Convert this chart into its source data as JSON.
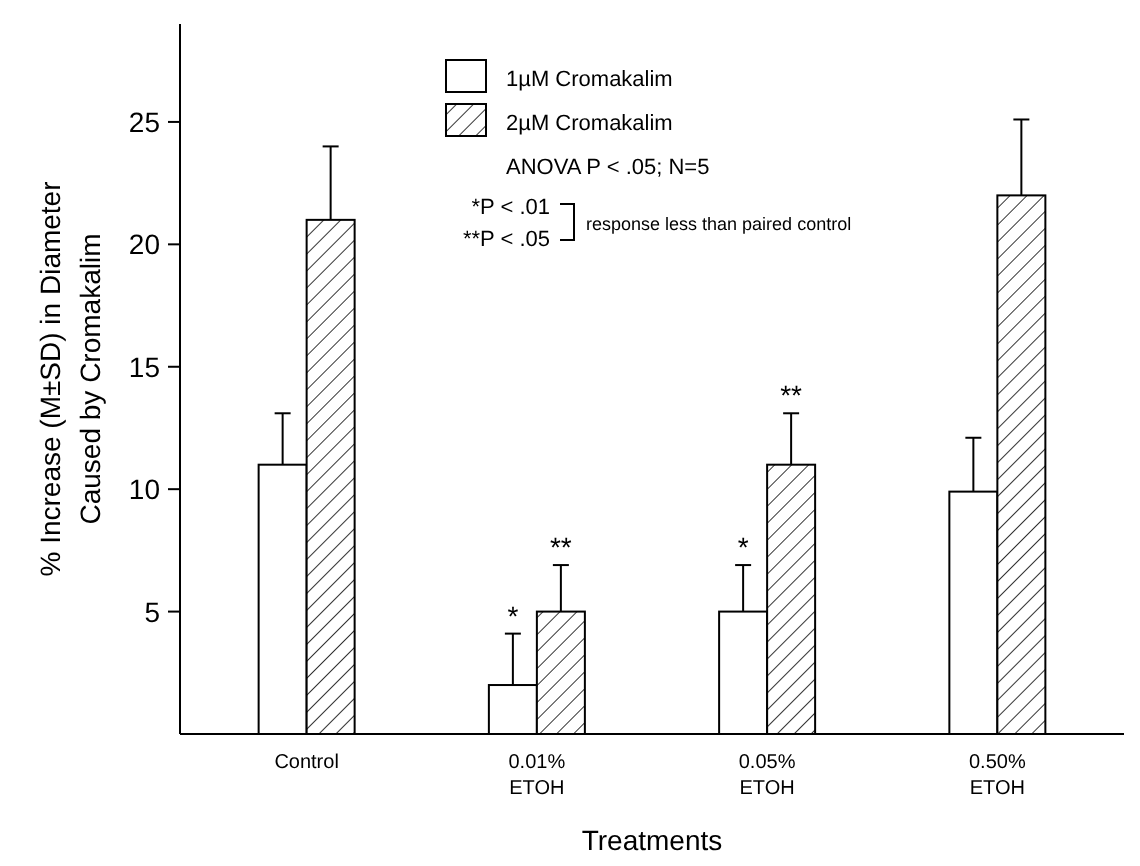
{
  "chart_data": {
    "type": "bar",
    "xlabel": "Treatments",
    "ylabel": "% Increase (M±SD) in Diameter\nCaused by Cromakalim",
    "categories": [
      "Control",
      "0.01%\nETOH",
      "0.05%\nETOH",
      "0.50%\nETOH"
    ],
    "series": [
      {
        "name": "1µM Cromakalim",
        "color": "#ffffff",
        "values": [
          11,
          2,
          5,
          9.9
        ],
        "errors": [
          [
            11,
            13.1
          ],
          [
            2,
            4.1
          ],
          [
            5,
            6.9
          ],
          [
            9.9,
            12.1
          ]
        ]
      },
      {
        "name": "2µM Cromakalim",
        "color": "#000000",
        "values": [
          21,
          5,
          11,
          22
        ],
        "errors": [
          [
            21,
            24
          ],
          [
            5,
            6.9
          ],
          [
            11,
            13.1
          ],
          [
            22,
            25.1
          ]
        ]
      }
    ],
    "ylim": [
      0,
      29
    ],
    "yticks": [
      5,
      10,
      15,
      20,
      25
    ],
    "legend": "top",
    "annotations": [
      "ANOVA P < .05; N=5",
      "*P < .01",
      "**P < .05",
      "response less than paired control",
      {
        "text": "*",
        "x": "0.01%\nETOH",
        "y": 2
      },
      {
        "text": "**",
        "x": "0.01%\nETOH",
        "y": 5
      },
      {
        "text": "*",
        "x": "0.05%\nETOH",
        "y": 5
      },
      {
        "text": "**",
        "x": "0.05%\nETOH",
        "y": 11
      }
    ]
  }
}
